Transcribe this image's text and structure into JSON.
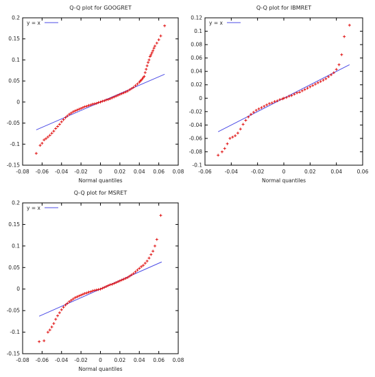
{
  "legend_line_label": "y = x",
  "colors": {
    "line": "#4b4be6",
    "points": "#e01010",
    "axis": "#000000"
  },
  "chart_data": [
    {
      "type": "scatter",
      "title": "Q-Q plot for GOOGRET",
      "xlabel": "Normal quantiles",
      "ylabel": "",
      "xlim": [
        -0.08,
        0.08
      ],
      "ylim": [
        -0.15,
        0.2
      ],
      "xticks": [
        "-0.08",
        "-0.06",
        "-0.04",
        "-0.02",
        "0",
        "0.02",
        "0.04",
        "0.06",
        "0.08"
      ],
      "yticks": [
        "-0.15",
        "-0.1",
        "-0.05",
        "0",
        "0.05",
        "0.1",
        "0.15",
        "0.2"
      ],
      "legend_placement": "top-left",
      "grid": false,
      "line_range": [
        -0.066,
        0.066
      ],
      "series": [
        {
          "name": "y = x",
          "kind": "line"
        },
        {
          "kind": "points",
          "x": [
            -0.066,
            -0.062,
            -0.06,
            -0.058,
            -0.056,
            -0.054,
            -0.052,
            -0.05,
            -0.048,
            -0.046,
            -0.044,
            -0.042,
            -0.04,
            -0.038,
            -0.036,
            -0.034,
            -0.032,
            -0.03,
            -0.028,
            -0.026,
            -0.024,
            -0.022,
            -0.02,
            -0.018,
            -0.016,
            -0.014,
            -0.012,
            -0.01,
            -0.008,
            -0.006,
            -0.004,
            -0.002,
            0,
            0.002,
            0.004,
            0.006,
            0.008,
            0.01,
            0.012,
            0.014,
            0.016,
            0.018,
            0.02,
            0.022,
            0.024,
            0.026,
            0.028,
            0.03,
            0.032,
            0.034,
            0.036,
            0.038,
            0.04,
            0.041,
            0.042,
            0.043,
            0.044,
            0.045,
            0.046,
            0.047,
            0.048,
            0.049,
            0.05,
            0.051,
            0.052,
            0.053,
            0.054,
            0.055,
            0.056,
            0.058,
            0.06,
            0.062,
            0.066
          ],
          "y": [
            -0.122,
            -0.103,
            -0.098,
            -0.09,
            -0.087,
            -0.083,
            -0.079,
            -0.074,
            -0.069,
            -0.063,
            -0.058,
            -0.053,
            -0.047,
            -0.042,
            -0.037,
            -0.033,
            -0.029,
            -0.026,
            -0.023,
            -0.021,
            -0.019,
            -0.017,
            -0.015,
            -0.013,
            -0.011,
            -0.01,
            -0.008,
            -0.007,
            -0.005,
            -0.004,
            -0.003,
            -0.001,
            0,
            0.002,
            0.003,
            0.005,
            0.006,
            0.008,
            0.01,
            0.012,
            0.014,
            0.016,
            0.018,
            0.02,
            0.022,
            0.024,
            0.026,
            0.029,
            0.032,
            0.035,
            0.039,
            0.043,
            0.047,
            0.05,
            0.052,
            0.055,
            0.058,
            0.061,
            0.07,
            0.078,
            0.086,
            0.094,
            0.1,
            0.108,
            0.112,
            0.117,
            0.122,
            0.128,
            0.133,
            0.14,
            0.148,
            0.157,
            0.181
          ]
        }
      ]
    },
    {
      "type": "scatter",
      "title": "Q-Q plot for IBMRET",
      "xlabel": "Normal quantiles",
      "ylabel": "",
      "xlim": [
        -0.06,
        0.06
      ],
      "ylim": [
        -0.1,
        0.12
      ],
      "xticks": [
        "-0.06",
        "-0.04",
        "-0.02",
        "0",
        "0.02",
        "0.04",
        "0.06"
      ],
      "yticks": [
        "-0.1",
        "-0.08",
        "-0.06",
        "-0.04",
        "-0.02",
        "0",
        "0.02",
        "0.04",
        "0.06",
        "0.08",
        "0.1",
        "0.12"
      ],
      "legend_placement": "top-left",
      "grid": false,
      "line_range": [
        -0.05,
        0.05
      ],
      "series": [
        {
          "name": "y = x",
          "kind": "line"
        },
        {
          "kind": "points",
          "x": [
            -0.05,
            -0.047,
            -0.045,
            -0.043,
            -0.041,
            -0.039,
            -0.037,
            -0.035,
            -0.033,
            -0.031,
            -0.029,
            -0.027,
            -0.025,
            -0.023,
            -0.021,
            -0.019,
            -0.017,
            -0.015,
            -0.013,
            -0.011,
            -0.009,
            -0.007,
            -0.005,
            -0.003,
            -0.001,
            0,
            0.002,
            0.004,
            0.006,
            0.008,
            0.01,
            0.012,
            0.014,
            0.016,
            0.018,
            0.02,
            0.022,
            0.024,
            0.026,
            0.028,
            0.03,
            0.032,
            0.034,
            0.036,
            0.038,
            0.04,
            0.042,
            0.044,
            0.046,
            0.05
          ],
          "y": [
            -0.085,
            -0.08,
            -0.075,
            -0.068,
            -0.06,
            -0.058,
            -0.056,
            -0.052,
            -0.046,
            -0.039,
            -0.033,
            -0.028,
            -0.024,
            -0.021,
            -0.018,
            -0.016,
            -0.014,
            -0.012,
            -0.01,
            -0.008,
            -0.007,
            -0.005,
            -0.004,
            -0.002,
            -0.001,
            0,
            0.001,
            0.003,
            0.004,
            0.006,
            0.008,
            0.009,
            0.011,
            0.013,
            0.015,
            0.017,
            0.019,
            0.021,
            0.023,
            0.025,
            0.027,
            0.029,
            0.032,
            0.035,
            0.038,
            0.043,
            0.05,
            0.065,
            0.092,
            0.109
          ]
        }
      ]
    },
    {
      "type": "scatter",
      "title": "Q-Q plot for MSRET",
      "xlabel": "Normal quantiles",
      "ylabel": "",
      "xlim": [
        -0.08,
        0.08
      ],
      "ylim": [
        -0.15,
        0.2
      ],
      "xticks": [
        "-0.08",
        "-0.06",
        "-0.04",
        "-0.02",
        "0",
        "0.02",
        "0.04",
        "0.06",
        "0.08"
      ],
      "yticks": [
        "-0.15",
        "-0.1",
        "-0.05",
        "0",
        "0.05",
        "0.1",
        "0.15",
        "0.2"
      ],
      "legend_placement": "top-left",
      "grid": false,
      "line_range": [
        -0.063,
        0.063
      ],
      "series": [
        {
          "name": "y = x",
          "kind": "line"
        },
        {
          "kind": "points",
          "x": [
            -0.063,
            -0.058,
            -0.054,
            -0.052,
            -0.05,
            -0.048,
            -0.046,
            -0.044,
            -0.042,
            -0.04,
            -0.038,
            -0.036,
            -0.034,
            -0.032,
            -0.03,
            -0.028,
            -0.026,
            -0.024,
            -0.022,
            -0.02,
            -0.018,
            -0.016,
            -0.014,
            -0.012,
            -0.01,
            -0.008,
            -0.006,
            -0.004,
            -0.002,
            0,
            0.002,
            0.004,
            0.006,
            0.008,
            0.01,
            0.012,
            0.014,
            0.016,
            0.018,
            0.02,
            0.022,
            0.024,
            0.026,
            0.028,
            0.03,
            0.032,
            0.034,
            0.036,
            0.038,
            0.04,
            0.042,
            0.044,
            0.046,
            0.048,
            0.05,
            0.052,
            0.054,
            0.056,
            0.058,
            0.062
          ],
          "y": [
            -0.122,
            -0.12,
            -0.1,
            -0.095,
            -0.088,
            -0.08,
            -0.07,
            -0.062,
            -0.055,
            -0.048,
            -0.042,
            -0.037,
            -0.033,
            -0.029,
            -0.026,
            -0.023,
            -0.02,
            -0.018,
            -0.016,
            -0.014,
            -0.012,
            -0.01,
            -0.009,
            -0.007,
            -0.006,
            -0.004,
            -0.003,
            -0.002,
            -0.001,
            0,
            0.002,
            0.004,
            0.006,
            0.008,
            0.01,
            0.011,
            0.013,
            0.015,
            0.017,
            0.019,
            0.021,
            0.023,
            0.025,
            0.027,
            0.03,
            0.033,
            0.036,
            0.04,
            0.044,
            0.048,
            0.052,
            0.055,
            0.06,
            0.065,
            0.072,
            0.08,
            0.088,
            0.1,
            0.115,
            0.171
          ]
        }
      ]
    }
  ]
}
